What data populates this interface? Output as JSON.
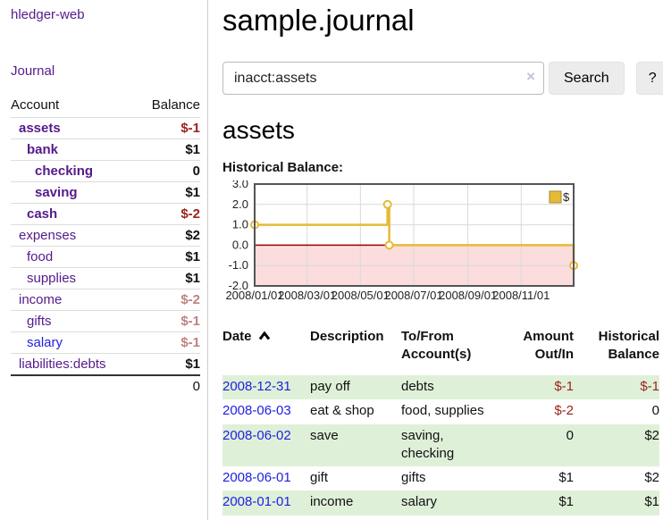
{
  "colors": {
    "link_purple": "#551a8b",
    "link_blue": "#2121e0",
    "neg_strong": "#9b231c",
    "neg_muted": "#bf8181",
    "stripe_green": "#dff0d8",
    "divider_gray": "#cccccc",
    "button_bg": "#ececec",
    "clear_icon": "#c6bede"
  },
  "app": {
    "title": "hledger-web",
    "nav_journal": "Journal"
  },
  "sidebar": {
    "headers": [
      "Account",
      "Balance"
    ],
    "rows": [
      {
        "name": "assets",
        "balance": "$-1",
        "level": 0,
        "bold": true,
        "link": "purple"
      },
      {
        "name": "bank",
        "balance": "$1",
        "level": 1,
        "bold": true,
        "link": "purple"
      },
      {
        "name": "checking",
        "balance": "0",
        "level": 2,
        "bold": true,
        "link": "purple"
      },
      {
        "name": "saving",
        "balance": "$1",
        "level": 2,
        "bold": true,
        "link": "purple"
      },
      {
        "name": "cash",
        "balance": "$-2",
        "level": 1,
        "bold": true,
        "link": "purple"
      },
      {
        "name": "expenses",
        "balance": "$2",
        "level": 0,
        "bold": false,
        "link": "purple"
      },
      {
        "name": "food",
        "balance": "$1",
        "level": 1,
        "bold": false,
        "link": "purple"
      },
      {
        "name": "supplies",
        "balance": "$1",
        "level": 1,
        "bold": false,
        "link": "purple"
      },
      {
        "name": "income",
        "balance": "$-2",
        "level": 0,
        "bold": false,
        "link": "purple"
      },
      {
        "name": "gifts",
        "balance": "$-1",
        "level": 1,
        "bold": false,
        "link": "purple"
      },
      {
        "name": "salary",
        "balance": "$-1",
        "level": 1,
        "bold": false,
        "link": "blue"
      },
      {
        "name": "liabilities:debts",
        "balance": "$1",
        "level": 0,
        "bold": false,
        "link": "purple"
      }
    ],
    "total": "0"
  },
  "main": {
    "title": "sample.journal",
    "account_heading": "assets"
  },
  "search": {
    "value": "inacct:assets",
    "button_label": "Search",
    "help_label": "?",
    "clear_icon": "×"
  },
  "chart_data": {
    "type": "line",
    "title": "Historical Balance:",
    "step": true,
    "series": [
      {
        "name": "$",
        "points": [
          {
            "date": "2008-01-01",
            "value": 1
          },
          {
            "date": "2008-06-01",
            "value": 2
          },
          {
            "date": "2008-06-03",
            "value": 0
          },
          {
            "date": "2008-12-31",
            "value": -1
          }
        ]
      }
    ],
    "x_ticks": [
      "2008/01/01",
      "2008/03/01",
      "2008/05/01",
      "2008/07/01",
      "2008/09/01",
      "2008/11/01"
    ],
    "y_ticks": [
      3.0,
      2.0,
      1.0,
      0.0,
      -1.0,
      -2.0
    ],
    "xlim": [
      "2008-01-01",
      "2008-12-31"
    ],
    "ylim": [
      -2,
      3
    ],
    "grid": true,
    "legend": {
      "label": "$",
      "position": "top-right"
    },
    "colors": {
      "line": "#e6ba37",
      "marker_fill": "#ffffff",
      "legend_border": "#a5892b",
      "negative_region": "#fbdddd",
      "zero_line": "#990000",
      "grid": "#d9d9d9",
      "border": "#555555"
    }
  },
  "register": {
    "columns": [
      {
        "lines": [
          "Date"
        ],
        "align": "left",
        "sort": "ascending"
      },
      {
        "lines": [
          "Description"
        ],
        "align": "left"
      },
      {
        "lines": [
          "To/From",
          "Account(s)"
        ],
        "align": "left"
      },
      {
        "lines": [
          "Amount",
          "Out/In"
        ],
        "align": "right"
      },
      {
        "lines": [
          "Historical",
          "Balance"
        ],
        "align": "right"
      }
    ],
    "rows": [
      {
        "date": "2008-12-31",
        "description": "pay off",
        "accounts": "debts",
        "amount": "$-1",
        "balance": "$-1"
      },
      {
        "date": "2008-06-03",
        "description": "eat & shop",
        "accounts": "food, supplies",
        "amount": "$-2",
        "balance": "0"
      },
      {
        "date": "2008-06-02",
        "description": "save",
        "accounts": "saving, checking",
        "amount": "0",
        "balance": "$2"
      },
      {
        "date": "2008-06-01",
        "description": "gift",
        "accounts": "gifts",
        "amount": "$1",
        "balance": "$2"
      },
      {
        "date": "2008-01-01",
        "description": "income",
        "accounts": "salary",
        "amount": "$1",
        "balance": "$1"
      }
    ]
  }
}
